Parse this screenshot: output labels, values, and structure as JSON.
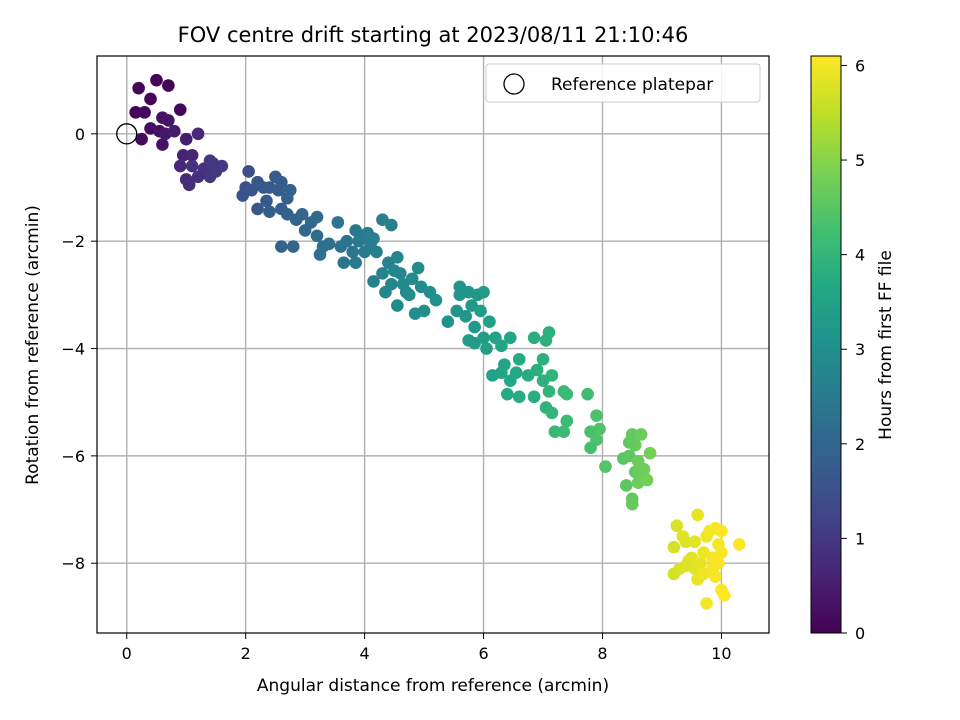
{
  "chart_data": {
    "type": "scatter",
    "title": "FOV centre drift starting at 2023/08/11 21:10:46",
    "xlabel": "Angular distance from reference (arcmin)",
    "ylabel": "Rotation from reference (arcmin)",
    "xlim": [
      -0.5,
      10.8
    ],
    "ylim": [
      -9.3,
      1.45
    ],
    "xticks": [
      0,
      2,
      4,
      6,
      8,
      10
    ],
    "yticks": [
      0,
      -2,
      -4,
      -6,
      -8
    ],
    "grid": true,
    "legend": {
      "placement": "top-right",
      "entries": [
        "Reference platepar"
      ]
    },
    "reference_point": {
      "x": 0,
      "y": 0
    },
    "colorbar": {
      "label": "Hours from first FF file",
      "range": [
        0,
        6.1
      ],
      "ticks": [
        0,
        1,
        2,
        3,
        4,
        5,
        6
      ],
      "colormap": "viridis"
    },
    "points": [
      [
        0.15,
        0.4,
        0.05
      ],
      [
        0.2,
        0.85,
        0.1
      ],
      [
        0.3,
        0.4,
        0.12
      ],
      [
        0.25,
        -0.1,
        0.15
      ],
      [
        0.4,
        0.65,
        0.08
      ],
      [
        0.5,
        1.0,
        0.05
      ],
      [
        0.7,
        0.9,
        0.06
      ],
      [
        0.9,
        0.45,
        0.1
      ],
      [
        0.4,
        0.1,
        0.2
      ],
      [
        0.55,
        0.05,
        0.25
      ],
      [
        0.6,
        0.3,
        0.3
      ],
      [
        0.6,
        -0.2,
        0.3
      ],
      [
        0.7,
        0.25,
        0.35
      ],
      [
        0.65,
        0.0,
        0.4
      ],
      [
        0.8,
        0.05,
        0.45
      ],
      [
        1.0,
        -0.1,
        0.5
      ],
      [
        0.95,
        -0.4,
        0.6
      ],
      [
        1.1,
        -0.4,
        0.65
      ],
      [
        1.2,
        0.0,
        0.7
      ],
      [
        0.9,
        -0.6,
        0.7
      ],
      [
        1.0,
        -0.85,
        0.75
      ],
      [
        1.05,
        -0.95,
        0.8
      ],
      [
        1.2,
        -0.8,
        0.85
      ],
      [
        1.1,
        -0.6,
        0.85
      ],
      [
        1.3,
        -0.65,
        0.9
      ],
      [
        1.4,
        -0.5,
        0.95
      ],
      [
        1.4,
        -0.8,
        0.95
      ],
      [
        1.5,
        -0.7,
        1.0
      ],
      [
        1.6,
        -0.6,
        1.05
      ],
      [
        1.45,
        -0.55,
        1.0
      ],
      [
        2.05,
        -0.7,
        1.5
      ],
      [
        2.0,
        -1.0,
        1.55
      ],
      [
        1.95,
        -1.15,
        1.55
      ],
      [
        2.1,
        -1.05,
        1.6
      ],
      [
        2.2,
        -0.9,
        1.6
      ],
      [
        2.3,
        -1.0,
        1.65
      ],
      [
        2.2,
        -1.4,
        1.65
      ],
      [
        2.35,
        -1.25,
        1.7
      ],
      [
        2.4,
        -1.0,
        1.7
      ],
      [
        2.5,
        -0.8,
        1.75
      ],
      [
        2.55,
        -1.05,
        1.75
      ],
      [
        2.4,
        -1.45,
        1.8
      ],
      [
        2.6,
        -0.9,
        1.8
      ],
      [
        2.7,
        -1.2,
        1.85
      ],
      [
        2.6,
        -1.4,
        1.85
      ],
      [
        2.75,
        -1.05,
        1.9
      ],
      [
        2.7,
        -1.5,
        1.9
      ],
      [
        2.85,
        -1.6,
        1.95
      ],
      [
        2.6,
        -2.1,
        1.95
      ],
      [
        2.8,
        -2.1,
        2.0
      ],
      [
        2.95,
        -1.5,
        2.0
      ],
      [
        3.0,
        -1.8,
        2.05
      ],
      [
        3.1,
        -1.65,
        2.1
      ],
      [
        3.2,
        -1.55,
        2.1
      ],
      [
        3.2,
        -1.9,
        2.15
      ],
      [
        3.3,
        -2.1,
        2.2
      ],
      [
        3.25,
        -2.25,
        2.2
      ],
      [
        3.4,
        -2.05,
        2.25
      ],
      [
        3.55,
        -1.65,
        2.3
      ],
      [
        3.6,
        -2.1,
        2.3
      ],
      [
        3.7,
        -2.0,
        2.35
      ],
      [
        3.65,
        -2.4,
        2.4
      ],
      [
        3.8,
        -2.2,
        2.4
      ],
      [
        3.85,
        -1.8,
        2.45
      ],
      [
        3.9,
        -2.0,
        2.45
      ],
      [
        3.95,
        -1.9,
        2.5
      ],
      [
        4.0,
        -2.2,
        2.5
      ],
      [
        3.85,
        -2.4,
        2.5
      ],
      [
        4.05,
        -1.85,
        2.55
      ],
      [
        4.1,
        -2.05,
        2.55
      ],
      [
        4.15,
        -1.95,
        2.6
      ],
      [
        4.2,
        -2.2,
        2.6
      ],
      [
        4.15,
        -2.75,
        2.65
      ],
      [
        4.3,
        -1.6,
        2.6
      ],
      [
        4.45,
        -1.7,
        2.65
      ],
      [
        4.3,
        -2.6,
        2.7
      ],
      [
        4.4,
        -2.4,
        2.7
      ],
      [
        4.5,
        -2.55,
        2.75
      ],
      [
        4.45,
        -2.8,
        2.75
      ],
      [
        4.35,
        -2.95,
        2.8
      ],
      [
        4.55,
        -2.3,
        2.75
      ],
      [
        4.6,
        -2.6,
        2.8
      ],
      [
        4.65,
        -2.8,
        2.85
      ],
      [
        4.7,
        -2.95,
        2.85
      ],
      [
        4.55,
        -3.2,
        2.9
      ],
      [
        4.8,
        -2.7,
        2.9
      ],
      [
        4.75,
        -3.0,
        2.95
      ],
      [
        4.9,
        -2.5,
        2.9
      ],
      [
        4.95,
        -2.85,
        2.95
      ],
      [
        5.0,
        -3.3,
        3.0
      ],
      [
        4.85,
        -3.35,
        3.0
      ],
      [
        5.1,
        -2.95,
        3.0
      ],
      [
        5.2,
        -3.1,
        3.05
      ],
      [
        5.4,
        -3.5,
        3.1
      ],
      [
        5.55,
        -3.3,
        3.15
      ],
      [
        5.6,
        -3.0,
        3.15
      ],
      [
        5.6,
        -2.85,
        3.1
      ],
      [
        5.75,
        -2.95,
        3.2
      ],
      [
        5.7,
        -3.4,
        3.2
      ],
      [
        5.8,
        -3.2,
        3.25
      ],
      [
        5.75,
        -3.85,
        3.3
      ],
      [
        5.85,
        -3.6,
        3.3
      ],
      [
        5.9,
        -3.0,
        3.25
      ],
      [
        5.95,
        -3.3,
        3.35
      ],
      [
        5.85,
        -3.9,
        3.35
      ],
      [
        6.0,
        -2.95,
        3.3
      ],
      [
        6.0,
        -3.8,
        3.4
      ],
      [
        6.05,
        -4.0,
        3.45
      ],
      [
        6.1,
        -3.5,
        3.45
      ],
      [
        6.15,
        -4.5,
        3.5
      ],
      [
        6.2,
        -3.8,
        3.5
      ],
      [
        6.3,
        -4.45,
        3.55
      ],
      [
        6.3,
        -3.95,
        3.55
      ],
      [
        6.35,
        -4.3,
        3.6
      ],
      [
        6.45,
        -3.8,
        3.6
      ],
      [
        6.45,
        -4.6,
        3.65
      ],
      [
        6.55,
        -4.45,
        3.65
      ],
      [
        6.6,
        -4.2,
        3.7
      ],
      [
        6.4,
        -4.85,
        3.7
      ],
      [
        6.6,
        -4.9,
        3.75
      ],
      [
        6.75,
        -4.5,
        3.75
      ],
      [
        6.85,
        -4.9,
        3.8
      ],
      [
        6.9,
        -4.4,
        3.8
      ],
      [
        6.85,
        -3.8,
        3.8
      ],
      [
        7.05,
        -3.85,
        3.85
      ],
      [
        7.0,
        -4.2,
        3.85
      ],
      [
        7.0,
        -4.6,
        3.9
      ],
      [
        7.05,
        -5.1,
        3.9
      ],
      [
        7.15,
        -4.5,
        3.95
      ],
      [
        7.1,
        -4.8,
        3.95
      ],
      [
        7.15,
        -5.2,
        4.0
      ],
      [
        7.1,
        -3.7,
        3.85
      ],
      [
        7.2,
        -5.55,
        4.05
      ],
      [
        7.35,
        -4.8,
        4.05
      ],
      [
        7.4,
        -5.35,
        4.1
      ],
      [
        7.4,
        -4.85,
        4.1
      ],
      [
        7.35,
        -5.55,
        4.15
      ],
      [
        7.75,
        -4.85,
        4.2
      ],
      [
        7.8,
        -5.55,
        4.3
      ],
      [
        7.8,
        -5.85,
        4.3
      ],
      [
        7.9,
        -5.25,
        4.35
      ],
      [
        7.9,
        -5.7,
        4.35
      ],
      [
        7.95,
        -5.5,
        4.4
      ],
      [
        8.05,
        -6.2,
        4.45
      ],
      [
        8.35,
        -6.05,
        4.5
      ],
      [
        8.4,
        -6.55,
        4.55
      ],
      [
        8.45,
        -6.0,
        4.55
      ],
      [
        8.5,
        -5.6,
        4.6
      ],
      [
        8.5,
        -6.8,
        4.6
      ],
      [
        8.55,
        -6.3,
        4.65
      ],
      [
        8.55,
        -5.8,
        4.65
      ],
      [
        8.6,
        -6.5,
        4.7
      ],
      [
        8.6,
        -6.1,
        4.7
      ],
      [
        8.65,
        -5.6,
        4.7
      ],
      [
        8.7,
        -6.4,
        4.75
      ],
      [
        8.7,
        -6.25,
        4.75
      ],
      [
        8.8,
        -5.95,
        4.8
      ],
      [
        8.75,
        -6.45,
        4.8
      ],
      [
        8.5,
        -6.9,
        4.65
      ],
      [
        8.45,
        -5.75,
        4.6
      ],
      [
        9.2,
        -7.7,
        5.7
      ],
      [
        9.2,
        -8.2,
        5.7
      ],
      [
        9.25,
        -7.3,
        5.75
      ],
      [
        9.3,
        -8.1,
        5.75
      ],
      [
        9.35,
        -7.5,
        5.8
      ],
      [
        9.4,
        -7.6,
        5.8
      ],
      [
        9.45,
        -7.95,
        5.85
      ],
      [
        9.5,
        -7.9,
        5.85
      ],
      [
        9.55,
        -8.1,
        5.85
      ],
      [
        9.6,
        -7.1,
        5.9
      ],
      [
        9.6,
        -8.3,
        5.9
      ],
      [
        9.65,
        -8.0,
        5.9
      ],
      [
        9.7,
        -7.8,
        5.95
      ],
      [
        9.7,
        -8.2,
        5.95
      ],
      [
        9.75,
        -7.5,
        5.95
      ],
      [
        9.75,
        -8.75,
        6.0
      ],
      [
        9.8,
        -7.4,
        6.0
      ],
      [
        9.85,
        -7.9,
        6.0
      ],
      [
        9.85,
        -8.1,
        6.0
      ],
      [
        9.9,
        -7.35,
        6.05
      ],
      [
        9.9,
        -8.25,
        6.05
      ],
      [
        9.95,
        -8.0,
        6.05
      ],
      [
        9.95,
        -7.65,
        6.05
      ],
      [
        10.0,
        -8.5,
        6.1
      ],
      [
        10.0,
        -7.4,
        6.1
      ],
      [
        10.05,
        -8.6,
        6.1
      ],
      [
        10.0,
        -7.8,
        6.05
      ],
      [
        10.3,
        -7.65,
        6.1
      ],
      [
        9.55,
        -7.6,
        5.85
      ],
      [
        9.4,
        -8.05,
        5.8
      ]
    ]
  }
}
